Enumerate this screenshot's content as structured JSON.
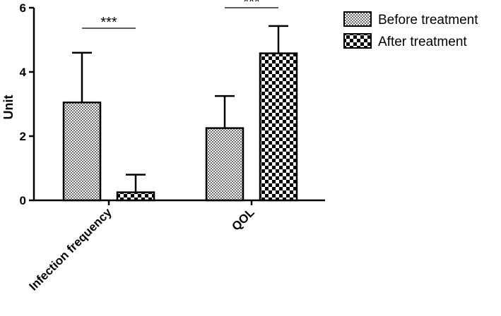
{
  "chart_data": {
    "type": "bar",
    "categories": [
      "Infection frequency",
      "QOL"
    ],
    "ylabel": "Unit",
    "xlabel": "",
    "ylim": [
      0,
      6
    ],
    "yticks": [
      0,
      2,
      4,
      6
    ],
    "grid": false,
    "legend_position": "top-right",
    "series": [
      {
        "name": "Before treatment",
        "values": [
          3.05,
          2.25
        ],
        "errors": [
          1.55,
          1.0
        ],
        "pattern": "fine-checker"
      },
      {
        "name": "After treatment",
        "values": [
          0.25,
          4.58
        ],
        "errors": [
          0.55,
          0.85
        ],
        "pattern": "coarse-checker"
      }
    ],
    "annotations": [
      {
        "category": "Infection frequency",
        "text": "***"
      },
      {
        "category": "QOL",
        "text": "***"
      }
    ]
  }
}
